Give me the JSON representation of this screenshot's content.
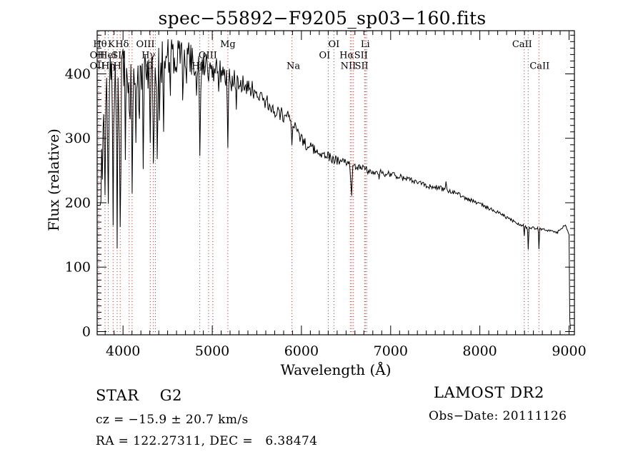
{
  "title": "spec−55892−F9205_sp03−160.fits",
  "footer": {
    "star_class": "STAR    G2",
    "cz": "cz = −15.9 ± 20.7 km/s",
    "radec": "RA = 122.27311, DEC =   6.38474",
    "survey": "LAMOST DR2",
    "obs_date": "Obs−Date: 20111126"
  },
  "chart_data": {
    "type": "line",
    "title": "spec−55892−F9205_sp03−160.fits",
    "xlabel": "Wavelength (Å)",
    "ylabel": "Flux (relative)",
    "xlim": [
      3710,
      9060
    ],
    "ylim": [
      -5,
      467
    ],
    "grid": false,
    "axes": {
      "x": {
        "major_ticks": [
          4000,
          5000,
          6000,
          7000,
          8000,
          9000
        ],
        "minor_step": 100
      },
      "y": {
        "major_ticks": [
          0,
          100,
          200,
          300,
          400
        ],
        "minor_step": 10
      }
    },
    "line_markers": {
      "color": "#992222",
      "wavelengths": [
        3727,
        3798,
        3835,
        3889,
        3934,
        3968,
        4069,
        4102,
        4305,
        4340,
        4363,
        4861,
        4959,
        5007,
        5175,
        5893,
        6300,
        6364,
        6548,
        6563,
        6583,
        6708,
        6716,
        6731,
        8498,
        8542,
        8662
      ],
      "labels": [
        {
          "text": "Hθ",
          "row": 1,
          "wavelength": 3798,
          "dx": -7
        },
        {
          "text": "K",
          "row": 1,
          "wavelength": 3934,
          "dx": -8
        },
        {
          "text": "Hδ",
          "row": 1,
          "wavelength": 4102,
          "dx": -14
        },
        {
          "text": "OIII",
          "row": 1,
          "wavelength": 4363,
          "dx": -14
        },
        {
          "text": "Mg",
          "row": 1,
          "wavelength": 5175,
          "dx": 0
        },
        {
          "text": "OI",
          "row": 1,
          "wavelength": 6364,
          "dx": 0
        },
        {
          "text": "Li",
          "row": 1,
          "wavelength": 6708,
          "dx": 1
        },
        {
          "text": "CaII",
          "row": 1,
          "wavelength": 8498,
          "dx": -3
        },
        {
          "text": "OII",
          "row": 2,
          "wavelength": 3727,
          "dx": -2
        },
        {
          "text": "HeI",
          "row": 2,
          "wavelength": 3889,
          "dx": -7
        },
        {
          "text": "SII",
          "row": 2,
          "wavelength": 4069,
          "dx": -15
        },
        {
          "text": "Hγ",
          "row": 2,
          "wavelength": 4340,
          "dx": -7
        },
        {
          "text": "OIII",
          "row": 2,
          "wavelength": 4959,
          "dx": -1
        },
        {
          "text": "OI",
          "row": 2,
          "wavelength": 6300,
          "dx": -5
        },
        {
          "text": "Hα",
          "row": 2,
          "wavelength": 6563,
          "dx": -7
        },
        {
          "text": "SII",
          "row": 2,
          "wavelength": 6716,
          "dx": -6
        },
        {
          "text": "OII",
          "row": 3,
          "wavelength": 3727,
          "dx": -2
        },
        {
          "text": "Hη",
          "row": 3,
          "wavelength": 3835,
          "dx": 0
        },
        {
          "text": "H",
          "row": 3,
          "wavelength": 3968,
          "dx": -4
        },
        {
          "text": "G",
          "row": 3,
          "wavelength": 4305,
          "dx": -1
        },
        {
          "text": "Hβ",
          "row": 3,
          "wavelength": 4861,
          "dx": -2
        },
        {
          "text": "Na",
          "row": 3,
          "wavelength": 5893,
          "dx": 2
        },
        {
          "text": "NII",
          "row": 3,
          "wavelength": 6548,
          "dx": -3
        },
        {
          "text": "SII",
          "row": 3,
          "wavelength": 6731,
          "dx": -7
        },
        {
          "text": "CaII",
          "row": 3,
          "wavelength": 8662,
          "dx": 1
        }
      ]
    },
    "series": [
      {
        "name": "flux",
        "seed": 20111126,
        "end": 9018,
        "continuum_points": [
          [
            3710,
            196
          ],
          [
            3752,
            196
          ],
          [
            3762,
            285
          ],
          [
            3775,
            345
          ],
          [
            3790,
            362
          ],
          [
            3810,
            368
          ],
          [
            3840,
            372
          ],
          [
            3870,
            377
          ],
          [
            3900,
            381
          ],
          [
            3930,
            384
          ],
          [
            3960,
            387
          ],
          [
            4000,
            390
          ],
          [
            4050,
            394
          ],
          [
            4100,
            398
          ],
          [
            4150,
            401
          ],
          [
            4200,
            404
          ],
          [
            4250,
            407
          ],
          [
            4300,
            409
          ],
          [
            4350,
            412
          ],
          [
            4400,
            415
          ],
          [
            4450,
            419
          ],
          [
            4500,
            423
          ],
          [
            4550,
            427
          ],
          [
            4600,
            429
          ],
          [
            4650,
            428
          ],
          [
            4700,
            426
          ],
          [
            4750,
            423
          ],
          [
            4800,
            421
          ],
          [
            4850,
            418
          ],
          [
            4900,
            415
          ],
          [
            4950,
            411
          ],
          [
            5000,
            407
          ],
          [
            5050,
            405
          ],
          [
            5100,
            402
          ],
          [
            5150,
            399
          ],
          [
            5200,
            395
          ],
          [
            5250,
            392
          ],
          [
            5300,
            388
          ],
          [
            5350,
            384
          ],
          [
            5400,
            380
          ],
          [
            5450,
            376
          ],
          [
            5500,
            372
          ],
          [
            5550,
            365
          ],
          [
            5600,
            357
          ],
          [
            5650,
            351
          ],
          [
            5700,
            345
          ],
          [
            5750,
            340
          ],
          [
            5800,
            336
          ],
          [
            5850,
            332
          ],
          [
            5900,
            328
          ],
          [
            5950,
            310
          ],
          [
            6000,
            297
          ],
          [
            6050,
            291
          ],
          [
            6100,
            286
          ],
          [
            6150,
            282
          ],
          [
            6200,
            278
          ],
          [
            6250,
            274
          ],
          [
            6300,
            271
          ],
          [
            6350,
            268
          ],
          [
            6400,
            266
          ],
          [
            6450,
            264
          ],
          [
            6500,
            262
          ],
          [
            6550,
            259
          ],
          [
            6600,
            256
          ],
          [
            6650,
            254
          ],
          [
            6700,
            252
          ],
          [
            6750,
            250
          ],
          [
            6800,
            248
          ],
          [
            6850,
            247
          ],
          [
            6900,
            246
          ],
          [
            6950,
            245
          ],
          [
            7000,
            244
          ],
          [
            7100,
            240
          ],
          [
            7200,
            236
          ],
          [
            7300,
            231
          ],
          [
            7400,
            227
          ],
          [
            7500,
            224
          ],
          [
            7600,
            221
          ],
          [
            7700,
            216
          ],
          [
            7800,
            210
          ],
          [
            7900,
            204
          ],
          [
            8000,
            198
          ],
          [
            8100,
            191
          ],
          [
            8200,
            185
          ],
          [
            8300,
            177
          ],
          [
            8400,
            170
          ],
          [
            8490,
            164
          ],
          [
            8550,
            161
          ],
          [
            8650,
            160
          ],
          [
            8750,
            158
          ],
          [
            8800,
            156
          ],
          [
            8860,
            153
          ],
          [
            8920,
            161
          ],
          [
            8955,
            165
          ],
          [
            8985,
            158
          ],
          [
            9000,
            150
          ],
          [
            9004,
            95
          ],
          [
            9008,
            20
          ],
          [
            9011,
            2
          ],
          [
            9018,
            2
          ]
        ],
        "absorption_lines": [
          {
            "wavelength": 3798,
            "depth": 200,
            "width": 4
          },
          {
            "wavelength": 3835,
            "depth": 215,
            "width": 4
          },
          {
            "wavelength": 3889,
            "depth": 210,
            "width": 4
          },
          {
            "wavelength": 3934,
            "depth": 280,
            "width": 5
          },
          {
            "wavelength": 3968,
            "depth": 265,
            "width": 5
          },
          {
            "wavelength": 4026,
            "depth": 120,
            "width": 3.5
          },
          {
            "wavelength": 4069,
            "depth": 90,
            "width": 3
          },
          {
            "wavelength": 4102,
            "depth": 190,
            "width": 4.5
          },
          {
            "wavelength": 4144,
            "depth": 90,
            "width": 3.5
          },
          {
            "wavelength": 4226,
            "depth": 125,
            "width": 4
          },
          {
            "wavelength": 4305,
            "depth": 135,
            "width": 5
          },
          {
            "wavelength": 4340,
            "depth": 150,
            "width": 4
          },
          {
            "wavelength": 4383,
            "depth": 115,
            "width": 3.5
          },
          {
            "wavelength": 4455,
            "depth": 85,
            "width": 3.5
          },
          {
            "wavelength": 4531,
            "depth": 70,
            "width": 3
          },
          {
            "wavelength": 4668,
            "depth": 60,
            "width": 3
          },
          {
            "wavelength": 4861,
            "depth": 142,
            "width": 4
          },
          {
            "wavelength": 5175,
            "depth": 102,
            "width": 6
          },
          {
            "wavelength": 5270,
            "depth": 60,
            "width": 4
          },
          {
            "wavelength": 5893,
            "depth": 30,
            "width": 3.5
          },
          {
            "wavelength": 6548,
            "depth": 18,
            "width": 3
          },
          {
            "wavelength": 6563,
            "depth": 42,
            "width": 4
          },
          {
            "wavelength": 6870,
            "depth": 14,
            "width": 4
          },
          {
            "wavelength": 8498,
            "depth": 14,
            "width": 3.5
          },
          {
            "wavelength": 8542,
            "depth": 33,
            "width": 3.5
          },
          {
            "wavelength": 8662,
            "depth": 31,
            "width": 3.5
          }
        ],
        "emission_features": [
          {
            "wavelength": 7620,
            "height": 14,
            "width": 3
          }
        ],
        "noise_profile": [
          [
            3710,
            0
          ],
          [
            3750,
            0
          ],
          [
            3762,
            40
          ],
          [
            3790,
            55
          ],
          [
            3900,
            55
          ],
          [
            4000,
            50
          ],
          [
            4200,
            42
          ],
          [
            4400,
            35
          ],
          [
            4600,
            28
          ],
          [
            4800,
            24
          ],
          [
            5000,
            20
          ],
          [
            5200,
            17
          ],
          [
            5500,
            13
          ],
          [
            5800,
            11
          ],
          [
            6100,
            8.5
          ],
          [
            6400,
            7
          ],
          [
            6800,
            5.5
          ],
          [
            7200,
            4.5
          ],
          [
            7600,
            4
          ],
          [
            8000,
            3
          ],
          [
            8400,
            2.5
          ],
          [
            8800,
            2
          ],
          [
            9060,
            2
          ]
        ],
        "extra_dips": [
          {
            "from": 3755,
            "to": 4450,
            "p": 0.16,
            "scale": 1.5
          },
          {
            "from": 4450,
            "to": 5450,
            "p": 0.07,
            "scale": 1.2
          }
        ]
      }
    ]
  }
}
